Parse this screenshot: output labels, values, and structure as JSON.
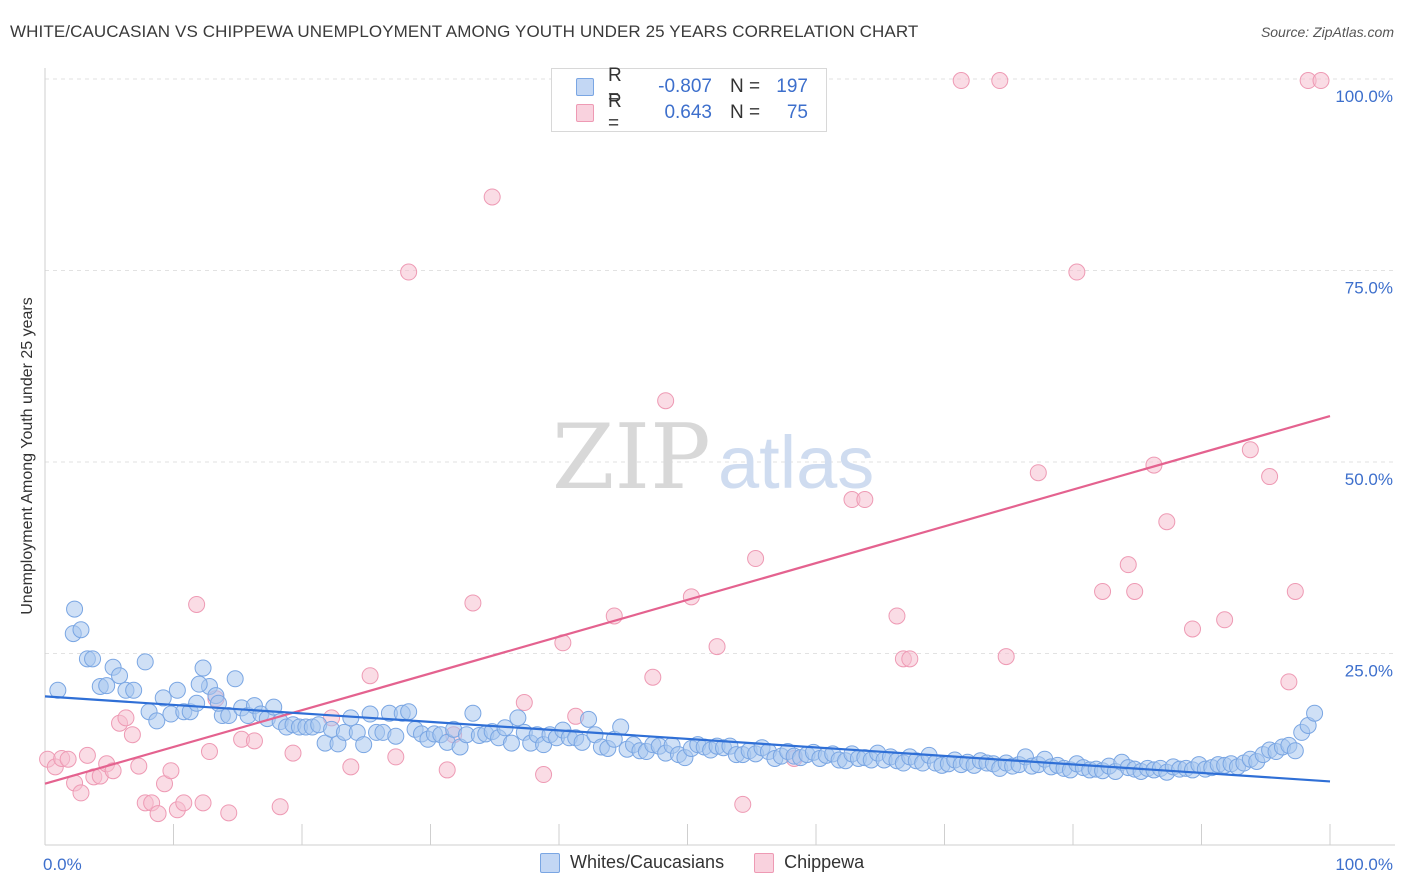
{
  "header": {
    "title": "WHITE/CAUCASIAN VS CHIPPEWA UNEMPLOYMENT AMONG YOUTH UNDER 25 YEARS CORRELATION CHART",
    "source": "Source: ZipAtlas.com"
  },
  "watermark": {
    "zip": "ZIP",
    "atlas": "atlas"
  },
  "legend": {
    "rows": [
      {
        "r_label": "R =",
        "r_value": "-0.807",
        "n_label": "N =",
        "n_value": "197",
        "color": "#9ec0ee"
      },
      {
        "r_label": "R =",
        "r_value": "0.643",
        "n_label": "N =",
        "n_value": "75",
        "color": "#f4b3c5"
      }
    ]
  },
  "bottom_legend": {
    "whites": "Whites/Caucasians",
    "chippewa": "Chippewa"
  },
  "colors": {
    "blue_fill": "#a8c6ef",
    "blue_stroke": "#7aa6e3",
    "blue_line": "#2f6fd6",
    "pink_fill": "#f6bfd0",
    "pink_stroke": "#ee9ab4",
    "pink_line": "#e4628f",
    "tick_text": "#3d6fcc",
    "grid": "#e2e2e2"
  },
  "chart_data": {
    "type": "scatter",
    "title": "WHITE/CAUCASIAN VS CHIPPEWA UNEMPLOYMENT AMONG YOUTH UNDER 25 YEARS CORRELATION CHART",
    "xlabel": "",
    "ylabel": "Unemployment Among Youth under 25 years",
    "xlim": [
      0,
      100
    ],
    "ylim": [
      0,
      102
    ],
    "x_tick_labels": [
      "0.0%",
      "100.0%"
    ],
    "y_ticks": [
      25,
      50,
      75,
      100
    ],
    "y_tick_labels": [
      "25.0%",
      "50.0%",
      "75.0%",
      "100.0%"
    ],
    "series": [
      {
        "name": "Whites/Caucasians",
        "r": -0.807,
        "n": 197,
        "trend": {
          "x": [
            0,
            100
          ],
          "y": [
            19.4,
            8.3
          ]
        },
        "points": [
          [
            1,
            20.2
          ],
          [
            2.2,
            27.6
          ],
          [
            2.3,
            30.8
          ],
          [
            2.8,
            28.1
          ],
          [
            3.3,
            24.3
          ],
          [
            3.7,
            24.3
          ],
          [
            4.3,
            20.7
          ],
          [
            4.8,
            20.8
          ],
          [
            5.3,
            23.2
          ],
          [
            5.8,
            22.1
          ],
          [
            6.3,
            20.2
          ],
          [
            6.9,
            20.2
          ],
          [
            7.8,
            23.9
          ],
          [
            8.1,
            17.4
          ],
          [
            8.7,
            16.2
          ],
          [
            9.2,
            19.2
          ],
          [
            9.8,
            17.1
          ],
          [
            10.3,
            20.2
          ],
          [
            10.8,
            17.4
          ],
          [
            11.3,
            17.4
          ],
          [
            11.8,
            18.5
          ],
          [
            12.3,
            23.1
          ],
          [
            12.8,
            20.7
          ],
          [
            13.3,
            19.5
          ],
          [
            13.8,
            16.9
          ],
          [
            14.3,
            16.9
          ],
          [
            14.8,
            21.7
          ],
          [
            15.3,
            17.9
          ],
          [
            15.8,
            16.9
          ],
          [
            16.3,
            18.2
          ],
          [
            16.8,
            17.1
          ],
          [
            17.3,
            16.5
          ],
          [
            17.8,
            18.0
          ],
          [
            18.3,
            16.1
          ],
          [
            18.8,
            15.4
          ],
          [
            19.3,
            15.7
          ],
          [
            19.8,
            15.4
          ],
          [
            20.3,
            15.4
          ],
          [
            20.8,
            15.4
          ],
          [
            21.3,
            15.7
          ],
          [
            21.8,
            13.3
          ],
          [
            22.3,
            15.1
          ],
          [
            22.8,
            13.2
          ],
          [
            23.3,
            14.7
          ],
          [
            23.8,
            16.6
          ],
          [
            24.3,
            14.7
          ],
          [
            24.8,
            13.1
          ],
          [
            25.3,
            17.1
          ],
          [
            25.8,
            14.7
          ],
          [
            26.3,
            14.7
          ],
          [
            26.8,
            17.2
          ],
          [
            27.3,
            14.2
          ],
          [
            27.8,
            17.2
          ],
          [
            28.3,
            17.4
          ],
          [
            28.8,
            15.1
          ],
          [
            29.3,
            14.5
          ],
          [
            29.8,
            13.8
          ],
          [
            30.3,
            14.5
          ],
          [
            30.8,
            14.4
          ],
          [
            31.3,
            13.4
          ],
          [
            31.8,
            15.1
          ],
          [
            32.3,
            12.8
          ],
          [
            32.8,
            14.4
          ],
          [
            33.3,
            17.2
          ],
          [
            33.8,
            14.3
          ],
          [
            34.3,
            14.5
          ],
          [
            34.8,
            14.8
          ],
          [
            35.3,
            14.0
          ],
          [
            35.8,
            15.3
          ],
          [
            36.3,
            13.3
          ],
          [
            36.8,
            16.6
          ],
          [
            37.3,
            14.7
          ],
          [
            37.8,
            13.3
          ],
          [
            38.3,
            14.4
          ],
          [
            38.8,
            13.1
          ],
          [
            39.3,
            14.4
          ],
          [
            39.8,
            14.0
          ],
          [
            40.3,
            15.0
          ],
          [
            40.8,
            14.0
          ],
          [
            41.3,
            14.0
          ],
          [
            41.8,
            13.4
          ],
          [
            42.3,
            16.4
          ],
          [
            42.8,
            14.4
          ],
          [
            43.3,
            12.8
          ],
          [
            43.8,
            12.6
          ],
          [
            44.3,
            13.8
          ],
          [
            44.8,
            15.4
          ],
          [
            45.3,
            12.5
          ],
          [
            45.8,
            13.1
          ],
          [
            46.3,
            12.3
          ],
          [
            46.8,
            12.2
          ],
          [
            47.3,
            13.1
          ],
          [
            47.8,
            12.9
          ],
          [
            48.3,
            12.0
          ],
          [
            48.8,
            13.0
          ],
          [
            49.3,
            11.8
          ],
          [
            49.8,
            11.4
          ],
          [
            50.3,
            12.6
          ],
          [
            50.8,
            13.1
          ],
          [
            51.3,
            12.8
          ],
          [
            51.8,
            12.4
          ],
          [
            52.3,
            12.9
          ],
          [
            52.8,
            12.7
          ],
          [
            53.3,
            12.9
          ],
          [
            53.8,
            11.8
          ],
          [
            54.3,
            11.8
          ],
          [
            54.8,
            12.3
          ],
          [
            55.3,
            11.9
          ],
          [
            55.8,
            12.7
          ],
          [
            56.3,
            12.2
          ],
          [
            56.8,
            11.3
          ],
          [
            57.3,
            11.6
          ],
          [
            57.8,
            12.2
          ],
          [
            58.3,
            11.6
          ],
          [
            58.8,
            11.4
          ],
          [
            59.3,
            11.8
          ],
          [
            59.8,
            12.1
          ],
          [
            60.3,
            11.3
          ],
          [
            60.8,
            11.7
          ],
          [
            61.3,
            11.9
          ],
          [
            61.8,
            11.1
          ],
          [
            62.3,
            11.0
          ],
          [
            62.8,
            11.9
          ],
          [
            63.3,
            11.3
          ],
          [
            63.8,
            11.4
          ],
          [
            64.3,
            11.1
          ],
          [
            64.8,
            12.0
          ],
          [
            65.3,
            11.1
          ],
          [
            65.8,
            11.5
          ],
          [
            66.3,
            11.0
          ],
          [
            66.8,
            10.7
          ],
          [
            67.3,
            11.5
          ],
          [
            67.8,
            11.0
          ],
          [
            68.3,
            10.7
          ],
          [
            68.8,
            11.7
          ],
          [
            69.3,
            10.7
          ],
          [
            69.8,
            10.4
          ],
          [
            70.3,
            10.6
          ],
          [
            70.8,
            11.1
          ],
          [
            71.3,
            10.5
          ],
          [
            71.8,
            10.8
          ],
          [
            72.3,
            10.4
          ],
          [
            72.8,
            11.0
          ],
          [
            73.3,
            10.7
          ],
          [
            73.8,
            10.6
          ],
          [
            74.3,
            10.0
          ],
          [
            74.8,
            10.7
          ],
          [
            75.3,
            10.3
          ],
          [
            75.8,
            10.5
          ],
          [
            76.3,
            11.5
          ],
          [
            76.8,
            10.3
          ],
          [
            77.3,
            10.5
          ],
          [
            77.8,
            11.2
          ],
          [
            78.3,
            10.2
          ],
          [
            78.8,
            10.4
          ],
          [
            79.3,
            10.0
          ],
          [
            79.8,
            9.8
          ],
          [
            80.3,
            10.6
          ],
          [
            80.8,
            10.1
          ],
          [
            81.3,
            9.8
          ],
          [
            81.8,
            9.9
          ],
          [
            82.3,
            9.7
          ],
          [
            82.8,
            10.3
          ],
          [
            83.3,
            9.6
          ],
          [
            83.8,
            10.8
          ],
          [
            84.3,
            10.1
          ],
          [
            84.8,
            9.9
          ],
          [
            85.3,
            9.6
          ],
          [
            85.8,
            10.0
          ],
          [
            86.3,
            9.8
          ],
          [
            86.8,
            10.0
          ],
          [
            87.3,
            9.5
          ],
          [
            87.8,
            10.2
          ],
          [
            88.3,
            9.9
          ],
          [
            88.8,
            10.0
          ],
          [
            89.3,
            9.8
          ],
          [
            89.8,
            10.5
          ],
          [
            90.3,
            9.9
          ],
          [
            90.8,
            10.1
          ],
          [
            91.3,
            10.5
          ],
          [
            91.8,
            10.4
          ],
          [
            92.3,
            10.6
          ],
          [
            92.8,
            10.2
          ],
          [
            93.3,
            10.7
          ],
          [
            93.8,
            11.2
          ],
          [
            94.3,
            10.9
          ],
          [
            94.8,
            11.8
          ],
          [
            95.3,
            12.4
          ],
          [
            95.8,
            12.2
          ],
          [
            96.3,
            12.8
          ],
          [
            96.8,
            13.0
          ],
          [
            97.3,
            12.3
          ],
          [
            97.8,
            14.7
          ],
          [
            98.3,
            15.6
          ],
          [
            98.8,
            17.2
          ],
          [
            13.5,
            18.5
          ],
          [
            12.0,
            21.0
          ]
        ]
      },
      {
        "name": "Chippewa",
        "r": 0.643,
        "n": 75,
        "trend": {
          "x": [
            0,
            100
          ],
          "y": [
            8.0,
            56.0
          ]
        },
        "points": [
          [
            0.2,
            11.2
          ],
          [
            0.8,
            10.2
          ],
          [
            1.3,
            11.3
          ],
          [
            1.8,
            11.2
          ],
          [
            2.3,
            8.1
          ],
          [
            2.8,
            6.8
          ],
          [
            3.3,
            11.7
          ],
          [
            3.8,
            8.9
          ],
          [
            4.3,
            9.0
          ],
          [
            4.8,
            10.6
          ],
          [
            5.3,
            9.7
          ],
          [
            5.8,
            15.9
          ],
          [
            6.3,
            16.6
          ],
          [
            6.8,
            14.4
          ],
          [
            7.3,
            10.3
          ],
          [
            7.8,
            5.5
          ],
          [
            8.3,
            5.5
          ],
          [
            8.8,
            4.1
          ],
          [
            9.3,
            8.0
          ],
          [
            9.8,
            9.7
          ],
          [
            10.3,
            4.6
          ],
          [
            10.8,
            5.5
          ],
          [
            11.8,
            31.4
          ],
          [
            12.3,
            5.5
          ],
          [
            12.8,
            12.2
          ],
          [
            13.3,
            19.1
          ],
          [
            14.3,
            4.2
          ],
          [
            15.3,
            13.8
          ],
          [
            16.3,
            13.6
          ],
          [
            18.3,
            5.0
          ],
          [
            19.3,
            12.0
          ],
          [
            22.3,
            16.6
          ],
          [
            23.8,
            10.2
          ],
          [
            25.3,
            22.1
          ],
          [
            27.3,
            11.5
          ],
          [
            28.3,
            74.8
          ],
          [
            31.3,
            9.8
          ],
          [
            31.8,
            14.4
          ],
          [
            33.3,
            31.6
          ],
          [
            34.8,
            84.6
          ],
          [
            37.3,
            18.6
          ],
          [
            38.8,
            9.2
          ],
          [
            40.3,
            26.4
          ],
          [
            41.3,
            16.8
          ],
          [
            44.3,
            29.9
          ],
          [
            47.3,
            21.9
          ],
          [
            48.3,
            58.0
          ],
          [
            50.3,
            32.4
          ],
          [
            52.3,
            25.9
          ],
          [
            54.3,
            5.3
          ],
          [
            55.3,
            37.4
          ],
          [
            58.3,
            11.3
          ],
          [
            62.8,
            45.1
          ],
          [
            63.8,
            45.1
          ],
          [
            66.3,
            29.9
          ],
          [
            66.8,
            24.3
          ],
          [
            67.3,
            24.3
          ],
          [
            71.3,
            99.8
          ],
          [
            74.3,
            99.8
          ],
          [
            74.8,
            24.6
          ],
          [
            77.3,
            48.6
          ],
          [
            80.3,
            74.8
          ],
          [
            82.3,
            33.1
          ],
          [
            84.3,
            36.6
          ],
          [
            84.8,
            33.1
          ],
          [
            86.3,
            49.6
          ],
          [
            87.3,
            42.2
          ],
          [
            89.3,
            28.2
          ],
          [
            91.8,
            29.4
          ],
          [
            93.8,
            51.6
          ],
          [
            95.3,
            48.1
          ],
          [
            96.8,
            21.3
          ],
          [
            97.3,
            33.1
          ],
          [
            98.3,
            99.8
          ],
          [
            99.3,
            99.8
          ]
        ]
      }
    ]
  }
}
